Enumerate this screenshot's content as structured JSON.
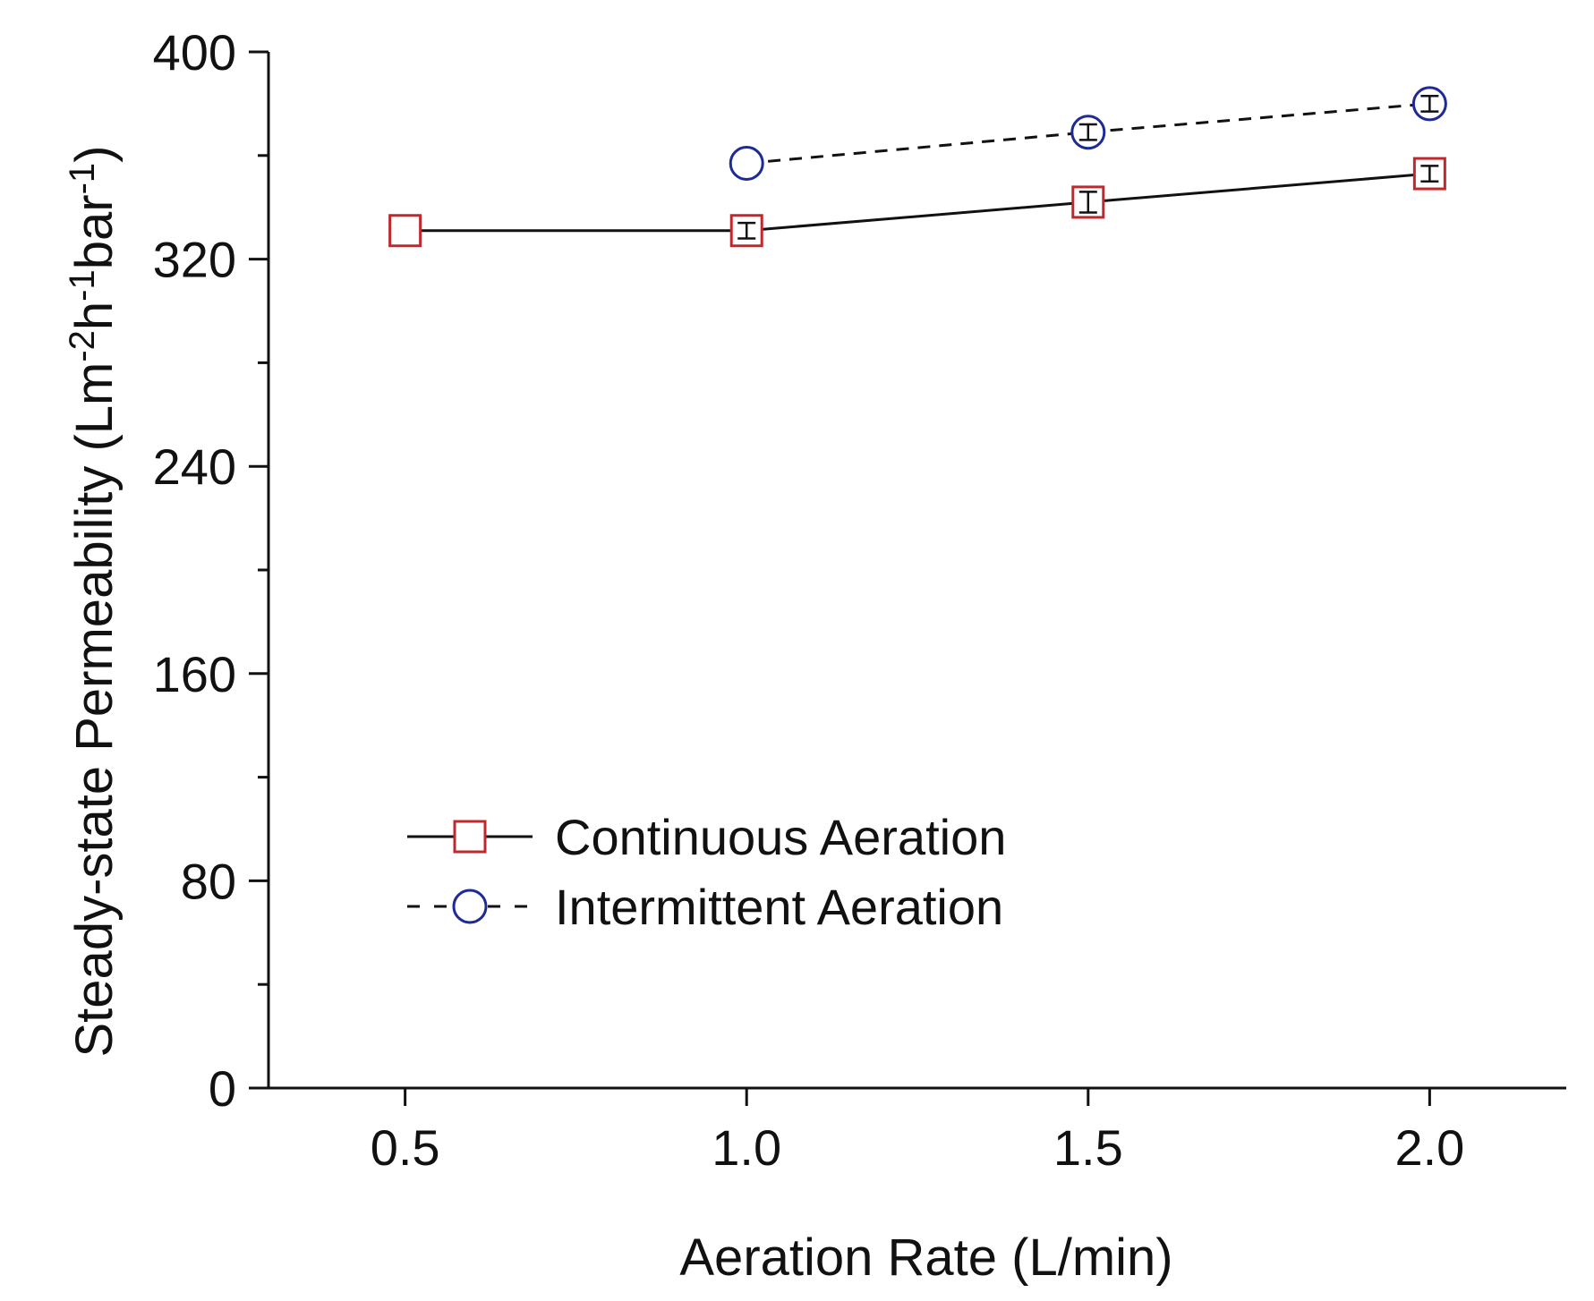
{
  "chart_data": {
    "type": "line",
    "xlabel": "Aeration Rate (L/min)",
    "ylabel": {
      "parts": [
        {
          "text": "Steady-state Permeability (Lm",
          "sup": false
        },
        {
          "text": "-2",
          "sup": true
        },
        {
          "text": "h",
          "sup": false
        },
        {
          "text": "-1",
          "sup": true
        },
        {
          "text": "bar",
          "sup": false
        },
        {
          "text": "-1",
          "sup": true
        },
        {
          "text": ")",
          "sup": false
        }
      ]
    },
    "xlim": [
      0.3,
      2.2
    ],
    "ylim": [
      0,
      400
    ],
    "x_ticks": [
      0.5,
      1.0,
      1.5,
      2.0
    ],
    "x_tick_labels": [
      "0.5",
      "1.0",
      "1.5",
      "2.0"
    ],
    "y_ticks": [
      0,
      80,
      160,
      240,
      320,
      400
    ],
    "y_tick_labels": [
      "0",
      "80",
      "160",
      "240",
      "320",
      "400"
    ],
    "y_minor_step": 40,
    "legend_position": "lower-left",
    "grid": false,
    "series": [
      {
        "name": "Continuous Aeration",
        "marker": "square",
        "marker_color": "#c0282d",
        "line_color": "#111111",
        "line_style": "solid",
        "x": [
          0.5,
          1.0,
          1.5,
          2.0
        ],
        "y": [
          331,
          331,
          342,
          353
        ],
        "y_err": [
          0,
          3,
          4,
          3
        ]
      },
      {
        "name": "Intermittent Aeration",
        "marker": "circle",
        "marker_color": "#1e2a96",
        "line_color": "#111111",
        "line_style": "dashed",
        "x": [
          1.0,
          1.5,
          2.0
        ],
        "y": [
          357,
          369,
          380
        ],
        "y_err": [
          0,
          3,
          3
        ]
      }
    ]
  }
}
